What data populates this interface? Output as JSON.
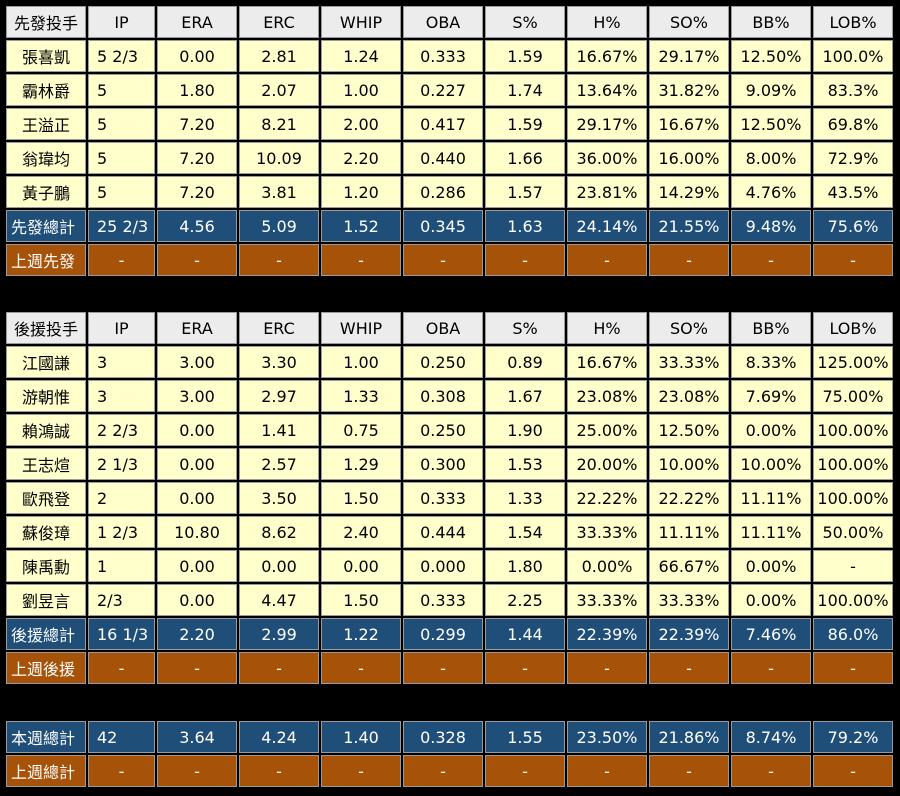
{
  "columns": [
    "IP",
    "ERA",
    "ERC",
    "WHIP",
    "OBA",
    "S%",
    "H%",
    "SO%",
    "BB%",
    "LOB%"
  ],
  "starters": {
    "header": "先發投手",
    "players": [
      {
        "name": "張喜凱",
        "ip": "5 2/3",
        "era": "0.00",
        "erc": "2.81",
        "whip": "1.24",
        "oba": "0.333",
        "s": "1.59",
        "h": "16.67%",
        "so": "29.17%",
        "bb": "12.50%",
        "lob": "100.0%"
      },
      {
        "name": "霸林爵",
        "ip": "5",
        "era": "1.80",
        "erc": "2.07",
        "whip": "1.00",
        "oba": "0.227",
        "s": "1.74",
        "h": "13.64%",
        "so": "31.82%",
        "bb": "9.09%",
        "lob": "83.3%"
      },
      {
        "name": "王溢正",
        "ip": "5",
        "era": "7.20",
        "erc": "8.21",
        "whip": "2.00",
        "oba": "0.417",
        "s": "1.59",
        "h": "29.17%",
        "so": "16.67%",
        "bb": "12.50%",
        "lob": "69.8%"
      },
      {
        "name": "翁瑋均",
        "ip": "5",
        "era": "7.20",
        "erc": "10.09",
        "whip": "2.20",
        "oba": "0.440",
        "s": "1.66",
        "h": "36.00%",
        "so": "16.00%",
        "bb": "8.00%",
        "lob": "72.9%"
      },
      {
        "name": "黃子鵬",
        "ip": "5",
        "era": "7.20",
        "erc": "3.81",
        "whip": "1.20",
        "oba": "0.286",
        "s": "1.57",
        "h": "23.81%",
        "so": "14.29%",
        "bb": "4.76%",
        "lob": "43.5%"
      }
    ],
    "total": {
      "name": "先發總計",
      "ip": "25 2/3",
      "era": "4.56",
      "erc": "5.09",
      "whip": "1.52",
      "oba": "0.345",
      "s": "1.63",
      "h": "24.14%",
      "so": "21.55%",
      "bb": "9.48%",
      "lob": "75.6%"
    },
    "prev": {
      "name": "上週先發",
      "ip": "-",
      "era": "-",
      "erc": "-",
      "whip": "-",
      "oba": "-",
      "s": "-",
      "h": "-",
      "so": "-",
      "bb": "-",
      "lob": "-"
    }
  },
  "relievers": {
    "header": "後援投手",
    "players": [
      {
        "name": "江國謙",
        "ip": "3",
        "era": "3.00",
        "erc": "3.30",
        "whip": "1.00",
        "oba": "0.250",
        "s": "0.89",
        "h": "16.67%",
        "so": "33.33%",
        "bb": "8.33%",
        "lob": "125.00%"
      },
      {
        "name": "游朝惟",
        "ip": "3",
        "era": "3.00",
        "erc": "2.97",
        "whip": "1.33",
        "oba": "0.308",
        "s": "1.67",
        "h": "23.08%",
        "so": "23.08%",
        "bb": "7.69%",
        "lob": "75.00%"
      },
      {
        "name": "賴鴻誠",
        "ip": "2 2/3",
        "era": "0.00",
        "erc": "1.41",
        "whip": "0.75",
        "oba": "0.250",
        "s": "1.90",
        "h": "25.00%",
        "so": "12.50%",
        "bb": "0.00%",
        "lob": "100.00%"
      },
      {
        "name": "王志煊",
        "ip": "2 1/3",
        "era": "0.00",
        "erc": "2.57",
        "whip": "1.29",
        "oba": "0.300",
        "s": "1.53",
        "h": "20.00%",
        "so": "10.00%",
        "bb": "10.00%",
        "lob": "100.00%"
      },
      {
        "name": "歐飛登",
        "ip": "2",
        "era": "0.00",
        "erc": "3.50",
        "whip": "1.50",
        "oba": "0.333",
        "s": "1.33",
        "h": "22.22%",
        "so": "22.22%",
        "bb": "11.11%",
        "lob": "100.00%"
      },
      {
        "name": "蘇俊璋",
        "ip": "1 2/3",
        "era": "10.80",
        "erc": "8.62",
        "whip": "2.40",
        "oba": "0.444",
        "s": "1.54",
        "h": "33.33%",
        "so": "11.11%",
        "bb": "11.11%",
        "lob": "50.00%"
      },
      {
        "name": "陳禹勳",
        "ip": "1",
        "era": "0.00",
        "erc": "0.00",
        "whip": "0.00",
        "oba": "0.000",
        "s": "1.80",
        "h": "0.00%",
        "so": "66.67%",
        "bb": "0.00%",
        "lob": "-"
      },
      {
        "name": "劉昱言",
        "ip": "2/3",
        "era": "0.00",
        "erc": "4.47",
        "whip": "1.50",
        "oba": "0.333",
        "s": "2.25",
        "h": "33.33%",
        "so": "33.33%",
        "bb": "0.00%",
        "lob": "100.00%"
      }
    ],
    "total": {
      "name": "後援總計",
      "ip": "16 1/3",
      "era": "2.20",
      "erc": "2.99",
      "whip": "1.22",
      "oba": "0.299",
      "s": "1.44",
      "h": "22.39%",
      "so": "22.39%",
      "bb": "7.46%",
      "lob": "86.0%"
    },
    "prev": {
      "name": "上週後援",
      "ip": "-",
      "era": "-",
      "erc": "-",
      "whip": "-",
      "oba": "-",
      "s": "-",
      "h": "-",
      "so": "-",
      "bb": "-",
      "lob": "-"
    }
  },
  "weekly": {
    "total": {
      "name": "本週總計",
      "ip": "42",
      "era": "3.64",
      "erc": "4.24",
      "whip": "1.40",
      "oba": "0.328",
      "s": "1.55",
      "h": "23.50%",
      "so": "21.86%",
      "bb": "8.74%",
      "lob": "79.2%"
    },
    "prev": {
      "name": "上週總計",
      "ip": "-",
      "era": "-",
      "erc": "-",
      "whip": "-",
      "oba": "-",
      "s": "-",
      "h": "-",
      "so": "-",
      "bb": "-",
      "lob": "-"
    }
  }
}
